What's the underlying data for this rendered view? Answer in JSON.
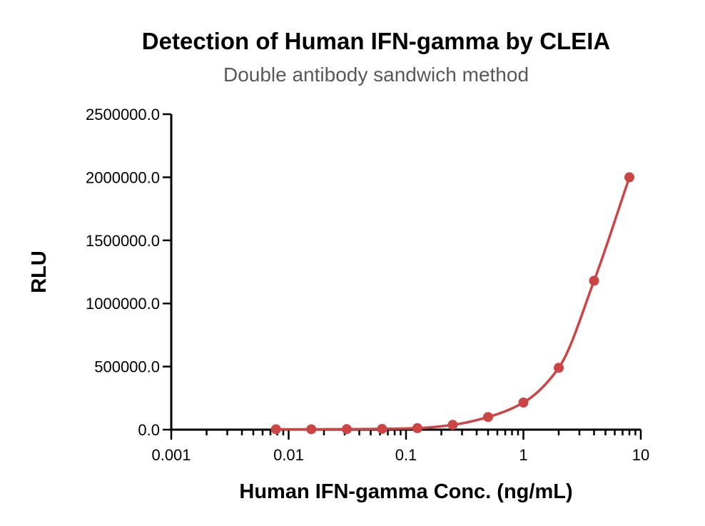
{
  "chart_data": {
    "type": "scatter",
    "title": "Detection of Human IFN-gamma by CLEIA",
    "subtitle": "Double antibody sandwich method",
    "xlabel": "Human IFN-gamma Conc. (ng/mL)",
    "ylabel": "RLU",
    "x_scale": "log",
    "xlim": [
      0.001,
      10
    ],
    "ylim": [
      0,
      2500000
    ],
    "x_ticks": [
      0.001,
      0.01,
      0.1,
      1,
      10
    ],
    "x_tick_labels": [
      "0.001",
      "0.01",
      "0.1",
      "1",
      "10"
    ],
    "y_ticks": [
      0,
      500000,
      1000000,
      1500000,
      2000000,
      2500000
    ],
    "y_tick_labels": [
      "0.0",
      "500000.0",
      "1000000.0",
      "1500000.0",
      "2000000.0",
      "2500000.0"
    ],
    "grid": false,
    "color": "#cc4444",
    "series": [
      {
        "x": [
          0.0078,
          0.0156,
          0.03125,
          0.0625,
          0.125,
          0.25,
          0.5,
          1,
          2,
          4,
          8
        ],
        "y": [
          3000,
          3000,
          4000,
          6000,
          12000,
          38000,
          100000,
          215000,
          490000,
          1180000,
          2000000
        ],
        "fit_curve": true
      }
    ]
  }
}
